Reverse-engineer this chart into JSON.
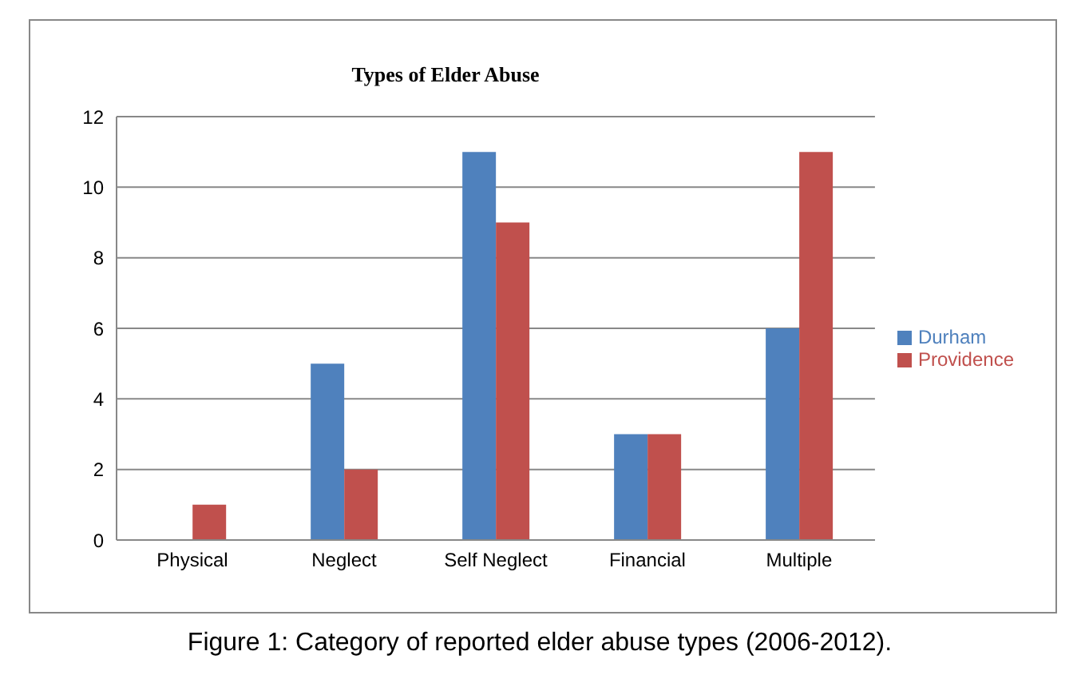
{
  "chart_data": {
    "type": "bar",
    "title": "Types of Elder Abuse",
    "categories": [
      "Physical",
      "Neglect",
      "Self Neglect",
      "Financial",
      "Multiple"
    ],
    "series": [
      {
        "name": "Durham",
        "color": "#4f81bd",
        "values": [
          0,
          5,
          11,
          3,
          6
        ]
      },
      {
        "name": "Providence",
        "color": "#c0504d",
        "values": [
          1,
          2,
          9,
          3,
          11
        ]
      }
    ],
    "ylim": [
      0,
      12
    ],
    "yticks": [
      0,
      2,
      4,
      6,
      8,
      10,
      12
    ],
    "grid": "y",
    "legend": "right",
    "annotations": [
      "Figure 1: Category of reported elder abuse types (2006-2012)."
    ]
  }
}
